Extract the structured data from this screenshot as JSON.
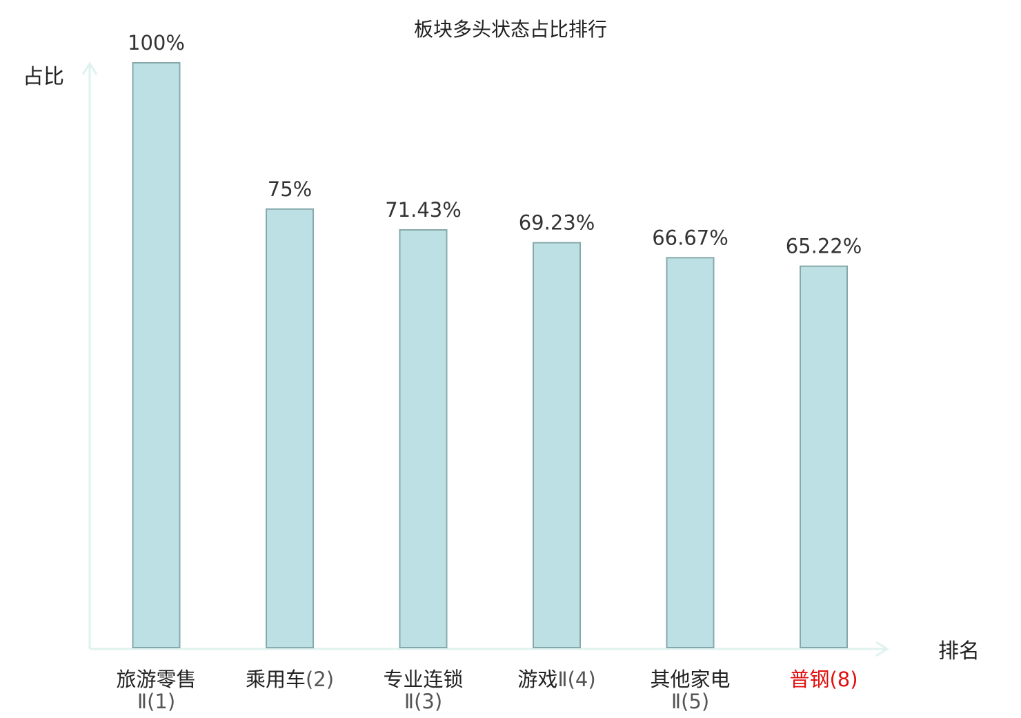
{
  "chart_data": {
    "type": "bar",
    "title": "板块多头状态占比排行",
    "xlabel": "排名",
    "ylabel": "占比",
    "ylim": [
      0,
      100
    ],
    "grid": false,
    "categories": [
      {
        "name": "旅游零售",
        "sub": "Ⅱ(1)",
        "highlight": false
      },
      {
        "name": "乘用车",
        "sub": "(2)",
        "highlight": false
      },
      {
        "name": "专业连锁",
        "sub": "Ⅱ(3)",
        "highlight": false
      },
      {
        "name": "游戏",
        "sub": "Ⅱ(4)",
        "highlight": false
      },
      {
        "name": "其他家电",
        "sub": "Ⅱ(5)",
        "highlight": false
      },
      {
        "name": "普钢",
        "sub": "(8)",
        "highlight": true
      }
    ],
    "values": [
      100,
      75,
      71.43,
      69.23,
      66.67,
      65.22
    ],
    "value_labels": [
      "100%",
      "75%",
      "71.43%",
      "69.23%",
      "66.67%",
      "65.22%"
    ],
    "colors": {
      "bar_fill": "#bce0e3",
      "bar_stroke": "#86a8ab",
      "axis": "#dff2ef",
      "highlight_text": "#e01010",
      "text": "#222222",
      "subtext": "#555555"
    }
  }
}
